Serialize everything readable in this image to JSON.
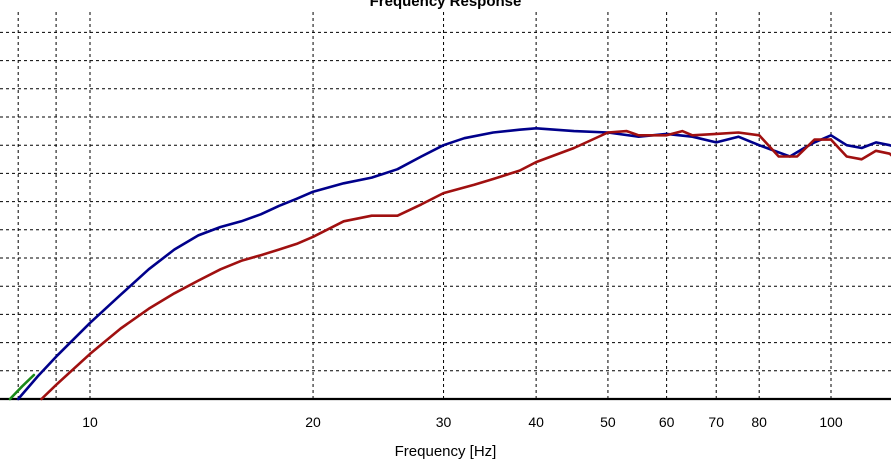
{
  "chart_data": {
    "type": "line",
    "title": "Frequency Response",
    "xlabel": "Frequency [Hz]",
    "ylabel": "",
    "x_scale": "log",
    "xlim": [
      7.5,
      130
    ],
    "ylim": [
      0,
      13
    ],
    "x_ticks": [
      10,
      20,
      30,
      40,
      50,
      60,
      70,
      80,
      100
    ],
    "y_gridlines": [
      1,
      2,
      3,
      4,
      5,
      6,
      7,
      8,
      9,
      10,
      11,
      12,
      13
    ],
    "grid": true,
    "series": [
      {
        "color": "#00008b",
        "points": [
          [
            8,
            0
          ],
          [
            8.5,
            0.8
          ],
          [
            9,
            1.5
          ],
          [
            10,
            2.7
          ],
          [
            11,
            3.7
          ],
          [
            12,
            4.6
          ],
          [
            13,
            5.3
          ],
          [
            14,
            5.8
          ],
          [
            15,
            6.1
          ],
          [
            16,
            6.3
          ],
          [
            17,
            6.55
          ],
          [
            18,
            6.85
          ],
          [
            19,
            7.1
          ],
          [
            20,
            7.35
          ],
          [
            22,
            7.65
          ],
          [
            24,
            7.85
          ],
          [
            26,
            8.15
          ],
          [
            28,
            8.6
          ],
          [
            30,
            9
          ],
          [
            32,
            9.25
          ],
          [
            35,
            9.45
          ],
          [
            38,
            9.55
          ],
          [
            40,
            9.6
          ],
          [
            45,
            9.5
          ],
          [
            50,
            9.45
          ],
          [
            55,
            9.3
          ],
          [
            60,
            9.4
          ],
          [
            65,
            9.3
          ],
          [
            70,
            9.1
          ],
          [
            75,
            9.3
          ],
          [
            80,
            9.0
          ],
          [
            88,
            8.6
          ],
          [
            92,
            8.9
          ],
          [
            95,
            9.1
          ],
          [
            100,
            9.35
          ],
          [
            105,
            9.0
          ],
          [
            110,
            8.9
          ],
          [
            115,
            9.1
          ],
          [
            120,
            9.0
          ],
          [
            127,
            8.8
          ]
        ]
      },
      {
        "color": "#a01010",
        "points": [
          [
            8.6,
            0
          ],
          [
            9,
            0.5
          ],
          [
            10,
            1.6
          ],
          [
            11,
            2.5
          ],
          [
            12,
            3.2
          ],
          [
            13,
            3.75
          ],
          [
            14,
            4.2
          ],
          [
            15,
            4.6
          ],
          [
            16,
            4.9
          ],
          [
            17,
            5.1
          ],
          [
            18,
            5.3
          ],
          [
            19,
            5.5
          ],
          [
            20,
            5.75
          ],
          [
            22,
            6.3
          ],
          [
            24,
            6.5
          ],
          [
            26,
            6.5
          ],
          [
            28,
            6.9
          ],
          [
            30,
            7.3
          ],
          [
            33,
            7.6
          ],
          [
            35,
            7.8
          ],
          [
            38,
            8.1
          ],
          [
            40,
            8.4
          ],
          [
            45,
            8.9
          ],
          [
            50,
            9.45
          ],
          [
            53,
            9.5
          ],
          [
            55,
            9.35
          ],
          [
            60,
            9.35
          ],
          [
            63,
            9.5
          ],
          [
            65,
            9.35
          ],
          [
            70,
            9.4
          ],
          [
            75,
            9.45
          ],
          [
            80,
            9.35
          ],
          [
            85,
            8.6
          ],
          [
            90,
            8.6
          ],
          [
            95,
            9.2
          ],
          [
            100,
            9.2
          ],
          [
            105,
            8.6
          ],
          [
            110,
            8.5
          ],
          [
            115,
            8.8
          ],
          [
            120,
            8.7
          ],
          [
            127,
            8.1
          ]
        ]
      },
      {
        "color": "#1a8a1a",
        "points": [
          [
            7.8,
            0
          ],
          [
            8.1,
            0.45
          ],
          [
            8.4,
            0.85
          ]
        ]
      }
    ]
  }
}
